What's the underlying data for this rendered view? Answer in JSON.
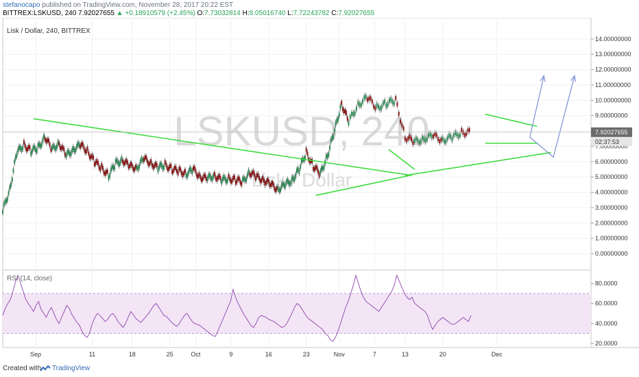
{
  "header": {
    "author": "stefanocapo",
    "published": "published on TradingView.com, November 28, 2017 20:22 EST",
    "symbol_line": "BITTREX:LSKUSD, 240",
    "last": "7.92027655",
    "change": "+0.18910579 (+2.45%)",
    "open_label": "O:",
    "open": "7.73032814",
    "high_label": "H:",
    "high": "8.05016740",
    "low_label": "L:",
    "low": "7.72243782",
    "close_label": "C:",
    "close": "7.92027655"
  },
  "chart_data": {
    "type": "line",
    "title": "Lisk / Dollar, 240, BITTREX",
    "watermark_symbol": "LSKUSD, 240",
    "watermark_name": "Lisk / Dollar",
    "xlabel": "",
    "ylabel": "",
    "x_ticks": [
      "Sep",
      "11",
      "18",
      "25",
      "Oct",
      "9",
      "16",
      "23",
      "Nov",
      "7",
      "13",
      "20",
      "Dec"
    ],
    "price_ticks": [
      "14.00000000",
      "13.00000000",
      "12.00000000",
      "11.00000000",
      "10.00000000",
      "9.00000000",
      "8.00000000",
      "7.00000000",
      "6.00000000",
      "5.00000000",
      "4.00000000",
      "3.00000000",
      "2.00000000",
      "1.00000000",
      "0.00000000"
    ],
    "price_ylim": [
      -0.8,
      15.2
    ],
    "last_price_label": "7.92027655",
    "countdown_label": "02:37:53",
    "series": [
      {
        "values_x": [
          0,
          2,
          4,
          6,
          8,
          10,
          12,
          14,
          16,
          18,
          20,
          22,
          24,
          26,
          28,
          30,
          32,
          34,
          36,
          38,
          40,
          42,
          44,
          46,
          48,
          50,
          52,
          54,
          56,
          58,
          60,
          62,
          64,
          66,
          68,
          70,
          72,
          74,
          76,
          78,
          80,
          82,
          84,
          86,
          88,
          90,
          92,
          94,
          96,
          98
        ],
        "values": [
          2.8,
          4.2,
          6.6,
          7.1,
          6.7,
          6.9,
          7.6,
          6.8,
          7.2,
          6.4,
          6.8,
          7.1,
          6.7,
          6.0,
          5.6,
          5.1,
          5.9,
          6.1,
          5.7,
          5.6,
          6.2,
          5.9,
          5.6,
          5.8,
          5.5,
          5.4,
          5.2,
          5.5,
          5.0,
          4.9,
          5.1,
          4.8,
          4.9,
          4.8,
          4.7,
          5.3,
          5.0,
          4.8,
          4.5,
          4.2,
          4.5,
          4.8,
          5.5,
          6.6,
          5.7,
          5.2,
          6.4,
          8.0,
          9.8,
          8.6
        ]
      },
      {
        "values_x": [
          98,
          100,
          102,
          104,
          106,
          108,
          110,
          112,
          114,
          116,
          118,
          120,
          122,
          124
        ],
        "values": [
          8.6,
          9.7,
          10.2,
          9.5,
          9.8,
          10.0,
          7.6,
          7.3,
          7.5,
          7.7,
          7.4,
          7.6,
          7.9,
          7.9
        ]
      }
    ],
    "trendlines_green": [
      {
        "x": [
          13,
          174
        ],
        "y": [
          8.8,
          5.1
        ]
      },
      {
        "x": [
          133,
          173
        ],
        "y": [
          3.8,
          5.1
        ]
      },
      {
        "x": [
          171,
          233
        ],
        "y": [
          5.1,
          6.6
        ]
      },
      {
        "x": [
          164,
          175
        ],
        "y": [
          6.8,
          5.5
        ]
      },
      {
        "x": [
          205,
          227
        ],
        "y": [
          9.1,
          8.3
        ]
      },
      {
        "x": [
          205,
          227
        ],
        "y": [
          7.2,
          7.2
        ]
      }
    ],
    "forecast_arrows": [
      {
        "x": [
          224,
          234,
          243
        ],
        "y": [
          7.6,
          6.3,
          11.6
        ]
      },
      {
        "x": [
          224,
          230
        ],
        "y": [
          7.6,
          11.6
        ]
      }
    ],
    "indicator": {
      "label": "RSI (14, close)",
      "ticks": [
        "80.0000",
        "60.0000",
        "40.0000",
        "20.0000"
      ],
      "ylim": [
        18,
        92
      ],
      "band": [
        30,
        70
      ],
      "values": [
        48,
        55,
        60,
        64,
        72,
        82,
        88,
        80,
        72,
        64,
        60,
        56,
        52,
        58,
        62,
        54,
        50,
        46,
        52,
        56,
        50,
        44,
        40,
        46,
        52,
        58,
        55,
        49,
        45,
        41,
        38,
        32,
        28,
        26,
        31,
        40,
        46,
        50,
        48,
        45,
        42,
        44,
        48,
        50,
        47,
        42,
        39,
        36,
        40,
        46,
        52,
        49,
        45,
        43,
        41,
        44,
        47,
        50,
        54,
        58,
        60,
        56,
        52,
        48,
        47,
        44,
        41,
        39,
        37,
        40,
        44,
        48,
        50,
        46,
        42,
        40,
        39,
        38,
        36,
        34,
        32,
        30,
        28,
        27,
        32,
        38,
        44,
        50,
        56,
        62,
        74,
        66,
        60,
        55,
        50,
        46,
        42,
        38,
        36,
        40,
        46,
        48,
        47,
        46,
        44,
        43,
        42,
        40,
        38,
        36,
        37,
        40,
        45,
        50,
        56,
        60,
        58,
        54,
        50,
        46,
        44,
        42,
        40,
        38,
        36,
        34,
        30,
        28,
        24,
        22,
        26,
        32,
        40,
        48,
        56,
        62,
        70,
        78,
        88,
        80,
        72,
        66,
        62,
        60,
        58,
        56,
        54,
        52,
        56,
        60,
        64,
        68,
        72,
        78,
        88,
        82,
        76,
        70,
        66,
        64,
        66,
        60,
        58,
        56,
        54,
        52,
        48,
        40,
        34,
        38,
        42,
        44,
        46,
        44,
        42,
        40,
        39,
        40,
        42,
        44,
        46,
        44,
        42,
        48
      ]
    }
  },
  "footer": {
    "created_label": "Created with",
    "brand": "TradingView"
  }
}
